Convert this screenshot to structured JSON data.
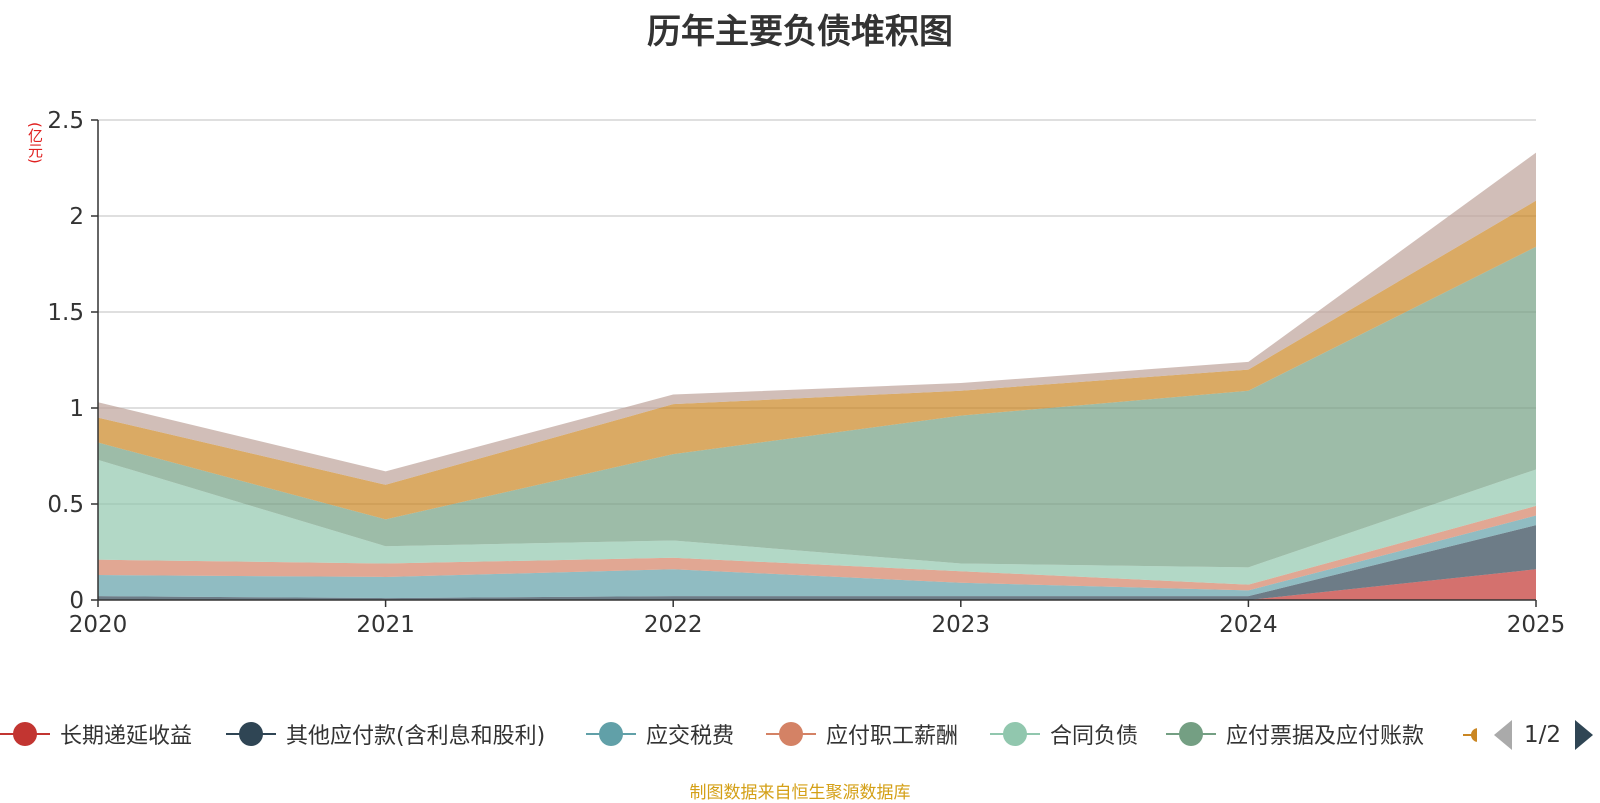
{
  "chart_data": {
    "type": "area",
    "stacked": true,
    "title": "历年主要负债堆积图",
    "unit_label": "(亿元)",
    "x": [
      "2020",
      "2021",
      "2022",
      "2023",
      "2024",
      "2025"
    ],
    "ylim": [
      0,
      2.5
    ],
    "yticks": [
      "0",
      "0.5",
      "1",
      "1.5",
      "2",
      "2.5"
    ],
    "grid": true,
    "legend_position": "bottom",
    "series": [
      {
        "name": "长期递延收益",
        "values": [
          0.0,
          0.0,
          0.0,
          0.0,
          0.0,
          0.16
        ]
      },
      {
        "name": "其他应付款(含利息和股利)",
        "values": [
          0.02,
          0.01,
          0.02,
          0.02,
          0.02,
          0.23
        ]
      },
      {
        "name": "应交税费",
        "values": [
          0.11,
          0.11,
          0.14,
          0.07,
          0.03,
          0.05
        ]
      },
      {
        "name": "应付职工薪酬",
        "values": [
          0.08,
          0.07,
          0.06,
          0.06,
          0.03,
          0.05
        ]
      },
      {
        "name": "合同负债",
        "values": [
          0.52,
          0.09,
          0.09,
          0.04,
          0.09,
          0.19
        ]
      },
      {
        "name": "应付票据及应付账款",
        "values": [
          0.09,
          0.14,
          0.45,
          0.77,
          0.92,
          1.16
        ]
      },
      {
        "name": "",
        "values": [
          0.13,
          0.18,
          0.26,
          0.13,
          0.11,
          0.24
        ]
      },
      {
        "name": "",
        "values": [
          0.08,
          0.07,
          0.05,
          0.04,
          0.04,
          0.25
        ]
      }
    ]
  },
  "colors": [
    "#c23531",
    "#2f4554",
    "#61a0a8",
    "#d48265",
    "#91c7ae",
    "#749f83",
    "#ca8622",
    "#bda29a"
  ],
  "legend_items": [
    {
      "label": "长期递延收益",
      "icon": "circle-line-marker"
    },
    {
      "label": "其他应付款(含利息和股利)",
      "icon": "circle-line-marker"
    },
    {
      "label": "应交税费",
      "icon": "circle-line-marker"
    },
    {
      "label": "应付职工薪酬",
      "icon": "circle-line-marker"
    },
    {
      "label": "合同负债",
      "icon": "circle-line-marker"
    },
    {
      "label": "应付票据及应付账款",
      "icon": "circle-line-marker"
    }
  ],
  "pager": {
    "text": "1/2",
    "prev_icon": "triangle-left-icon",
    "next_icon": "triangle-right-icon"
  },
  "source": "制图数据来自恒生聚源数据库",
  "unit_color": "#e02020",
  "source_color": "#d4a017"
}
